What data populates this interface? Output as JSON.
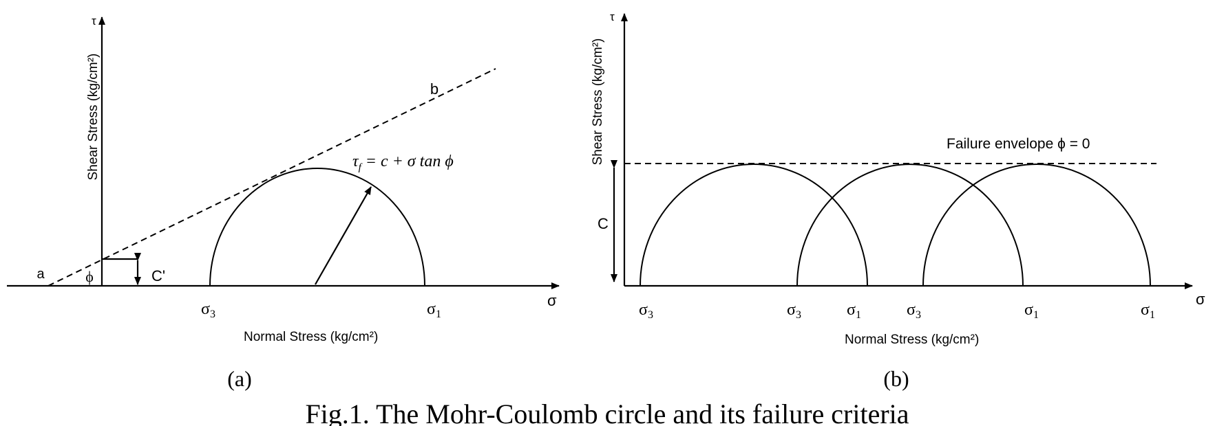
{
  "panel_a": {
    "y_axis_symbol": "τ",
    "y_axis_label": "Shear Stress (kg/cm²)",
    "x_axis_symbol": "σ",
    "x_axis_label": "Normal Stress (kg/cm²)",
    "point_a": "a",
    "point_b": "b",
    "phi_label": "ϕ",
    "cohesion_label": "C'",
    "equation": "τf = c + σ tan ϕ",
    "equation_main": "τ",
    "equation_sub": "f",
    "equation_rest": " = c + σ tan ϕ",
    "sigma3": "σ",
    "sigma3_sub": "3",
    "sigma1": "σ",
    "sigma1_sub": "1",
    "caption": "(a)"
  },
  "panel_b": {
    "y_axis_symbol": "τ",
    "y_axis_label": "Shear Stress (kg/cm²)",
    "x_axis_symbol": "σ",
    "x_axis_label": "Normal Stress (kg/cm²)",
    "envelope_label": "Failure envelope  ϕ = 0",
    "cohesion_label": "C",
    "ticks": [
      {
        "main": "σ",
        "sub": "3"
      },
      {
        "main": "σ",
        "sub": "3"
      },
      {
        "main": "σ",
        "sub": "1"
      },
      {
        "main": "σ",
        "sub": "3"
      },
      {
        "main": "σ",
        "sub": "1"
      },
      {
        "main": "σ",
        "sub": "1"
      }
    ],
    "caption": "(b)"
  },
  "figure_caption": "Fig.1. The Mohr-Coulomb circle and its failure criteria"
}
